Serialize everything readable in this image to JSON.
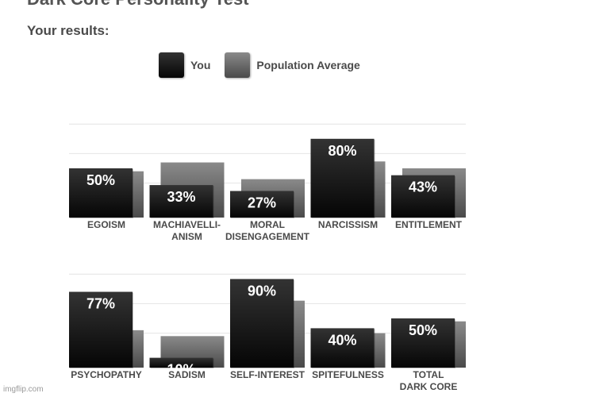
{
  "page": {
    "title": "Dark Core Personality Test",
    "results_heading": "Your results:",
    "watermark": "imgflip.com"
  },
  "legend": [
    {
      "label": "You",
      "swatch": "you"
    },
    {
      "label": "Population Average",
      "swatch": "avg"
    }
  ],
  "colors": {
    "you_top": "#333333",
    "you_bottom": "#050505",
    "avg_top": "#8a8a8a",
    "avg_bottom": "#4a4a4a",
    "label_text": "#4a4a4a",
    "gridline": "#e4e4e4"
  },
  "chart_data": [
    {
      "type": "bar",
      "categories": [
        [
          "EGOISM"
        ],
        [
          "MACHIAVELLI-",
          "ANISM"
        ],
        [
          "MORAL",
          "DISENGAGEMENT"
        ],
        [
          "NARCISSISM"
        ],
        [
          "ENTITLEMENT"
        ]
      ],
      "series": [
        {
          "name": "You",
          "values": [
            50,
            33,
            27,
            80,
            43
          ],
          "labels": [
            "50%",
            "33%",
            "27%",
            "80%",
            "43%"
          ]
        },
        {
          "name": "Population Average",
          "values": [
            47,
            56,
            39,
            57,
            50
          ]
        }
      ],
      "ylim": [
        0,
        100
      ],
      "grid": true
    },
    {
      "type": "bar",
      "categories": [
        [
          "PSYCHOPATHY"
        ],
        [
          "SADISM"
        ],
        [
          "SELF-INTEREST"
        ],
        [
          "SPITEFULNESS"
        ],
        [
          "TOTAL",
          "DARK CORE"
        ]
      ],
      "series": [
        {
          "name": "You",
          "values": [
            77,
            10,
            90,
            40,
            50
          ],
          "labels": [
            "77%",
            "10%",
            "90%",
            "40%",
            "50%"
          ]
        },
        {
          "name": "Population Average",
          "values": [
            38,
            32,
            68,
            35,
            47
          ]
        }
      ],
      "ylim": [
        0,
        100
      ],
      "grid": true
    }
  ]
}
